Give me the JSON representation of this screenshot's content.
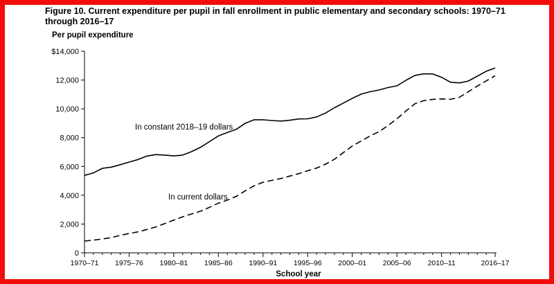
{
  "chart_data": {
    "type": "line",
    "title": "Figure 10. Current expenditure per pupil in fall enrollment in public elementary and secondary schools: 1970–71 through 2016–17",
    "ylabel": "Per pupil expenditure",
    "xlabel": "School year",
    "ylim": [
      0,
      14000
    ],
    "yticks": [
      0,
      2000,
      4000,
      6000,
      8000,
      10000,
      12000,
      14000
    ],
    "ytick_labels": [
      "0",
      "2,000",
      "4,000",
      "6,000",
      "8,000",
      "10,000",
      "12,000",
      "$14,000"
    ],
    "xtick_labels": [
      "1970–71",
      "1975–76",
      "1980–81",
      "1985–86",
      "1990–91",
      "1995–96",
      "2000–01",
      "2005–06",
      "2010–11",
      "2016–17"
    ],
    "xtick_years": [
      1970,
      1975,
      1980,
      1985,
      1990,
      1995,
      2000,
      2005,
      2010,
      2016
    ],
    "x": [
      1970,
      1971,
      1972,
      1973,
      1974,
      1975,
      1976,
      1977,
      1978,
      1979,
      1980,
      1981,
      1982,
      1983,
      1984,
      1985,
      1986,
      1987,
      1988,
      1989,
      1990,
      1991,
      1992,
      1993,
      1994,
      1995,
      1996,
      1997,
      1998,
      1999,
      2000,
      2001,
      2002,
      2003,
      2004,
      2005,
      2006,
      2007,
      2008,
      2009,
      2010,
      2011,
      2012,
      2013,
      2014,
      2015,
      2016
    ],
    "grid": false,
    "series": [
      {
        "name": "In constant 2018–19 dollars",
        "style": "solid",
        "values": [
          5380,
          5550,
          5870,
          5950,
          6120,
          6300,
          6480,
          6720,
          6820,
          6790,
          6730,
          6790,
          7030,
          7330,
          7720,
          8120,
          8360,
          8580,
          8990,
          9240,
          9240,
          9190,
          9150,
          9210,
          9300,
          9310,
          9440,
          9710,
          10080,
          10400,
          10730,
          11020,
          11190,
          11310,
          11480,
          11600,
          11980,
          12320,
          12430,
          12420,
          12190,
          11850,
          11800,
          11930,
          12270,
          12610,
          12840
        ]
      },
      {
        "name": "In current dollars",
        "style": "dashed",
        "values": [
          820,
          880,
          960,
          1060,
          1210,
          1340,
          1460,
          1620,
          1800,
          2030,
          2270,
          2500,
          2700,
          2890,
          3160,
          3450,
          3660,
          3920,
          4300,
          4650,
          4900,
          5030,
          5160,
          5330,
          5500,
          5700,
          5890,
          6160,
          6500,
          6960,
          7420,
          7770,
          8120,
          8420,
          8840,
          9310,
          9850,
          10350,
          10570,
          10660,
          10690,
          10660,
          10800,
          11190,
          11580,
          11940,
          12290
        ]
      }
    ],
    "annotations": [
      {
        "text": "In constant 2018–19 dollars",
        "series": 0
      },
      {
        "text": "In current dollars",
        "series": 1
      }
    ],
    "colors": {
      "line": "#000000",
      "border": "#f20c0c"
    }
  }
}
